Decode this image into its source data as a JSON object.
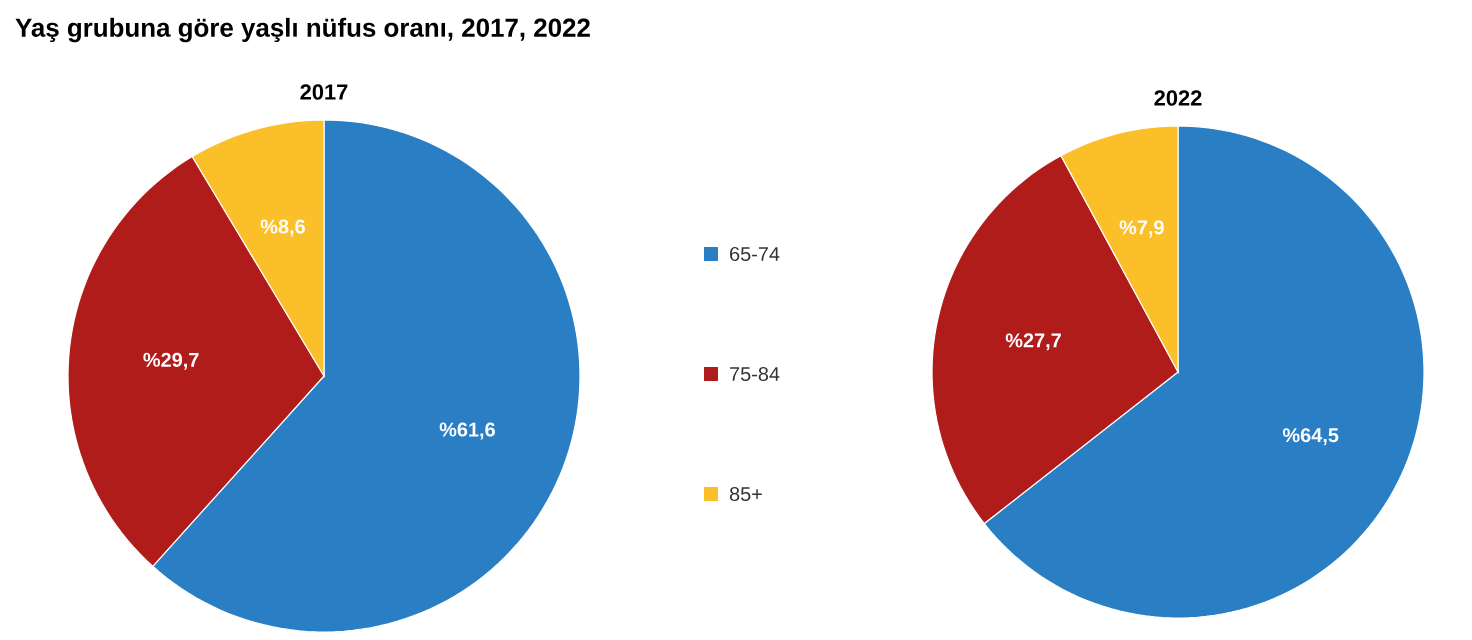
{
  "chart_data": [
    {
      "type": "pie",
      "title": "Yaş grubuna göre yaşlı nüfus oranı, 2017, 2022",
      "subtitle": "2017",
      "categories": [
        "65-74",
        "75-84",
        "85+"
      ],
      "values": [
        61.6,
        29.7,
        8.6
      ],
      "colors": [
        "#2a7fc4",
        "#b01c1a",
        "#fbbf2a"
      ],
      "value_labels": [
        "%61,6",
        "%29,7",
        "%8,6"
      ],
      "legend": "right"
    },
    {
      "type": "pie",
      "title": "2022",
      "values": [
        64.5,
        27.7,
        7.9
      ],
      "colors": [
        "#2a7fc4",
        "#b01c1a",
        "#fbbf2a"
      ],
      "value_labels": [
        "%64,5",
        "%27,7",
        "%7,9"
      ]
    }
  ]
}
